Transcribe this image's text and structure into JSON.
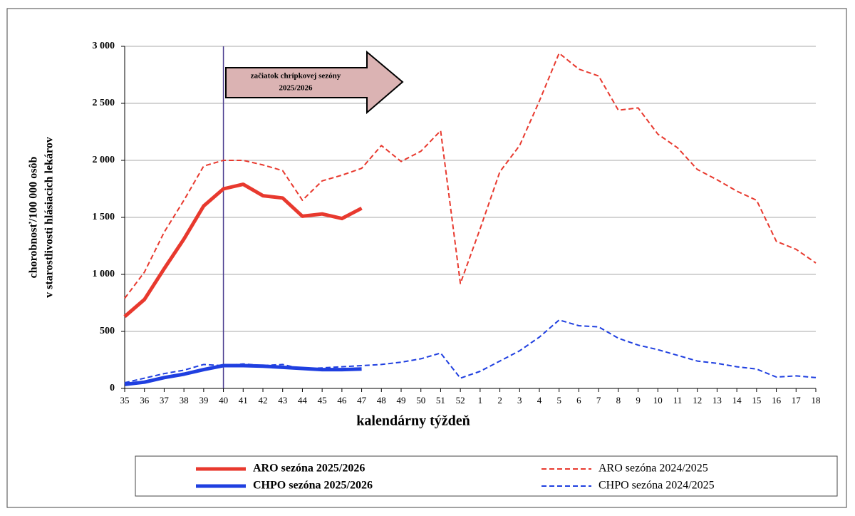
{
  "chart_data": {
    "type": "line",
    "ylabel": [
      "chorobnosť/100 000 osôb",
      "v starostlivosti hlásiacich lekárov"
    ],
    "xlabel": "kalendárny týždeň",
    "annotation": [
      "začiatok chrípkovej sezóny",
      "2025/2026"
    ],
    "vline": "40",
    "categories": [
      "35",
      "36",
      "37",
      "38",
      "39",
      "40",
      "41",
      "42",
      "43",
      "44",
      "45",
      "46",
      "47",
      "48",
      "49",
      "50",
      "51",
      "52",
      "1",
      "2",
      "3",
      "4",
      "5",
      "6",
      "7",
      "8",
      "9",
      "10",
      "11",
      "12",
      "13",
      "14",
      "15",
      "16",
      "17",
      "18"
    ],
    "series": [
      {
        "name": "ARO sezóna 2025/2026",
        "color": "#e8392e",
        "dash": false,
        "values": [
          630,
          780,
          1050,
          1310,
          1600,
          1750,
          1790,
          1690,
          1670,
          1510,
          1530,
          1490,
          1580,
          null,
          null,
          null,
          null,
          null,
          null,
          null,
          null,
          null,
          null,
          null,
          null,
          null,
          null,
          null,
          null,
          null,
          null,
          null,
          null,
          null,
          null,
          null
        ]
      },
      {
        "name": "ARO sezóna 2024/2025",
        "color": "#e8392e",
        "dash": true,
        "values": [
          790,
          1020,
          1370,
          1650,
          1950,
          2000,
          2000,
          1960,
          1910,
          1650,
          1820,
          1870,
          1930,
          2130,
          1990,
          2080,
          2260,
          920,
          1400,
          1900,
          2130,
          2520,
          2940,
          2800,
          2740,
          2440,
          2460,
          2230,
          2110,
          1920,
          1830,
          1730,
          1650,
          1290,
          1220,
          1100
        ]
      },
      {
        "name": "CHPO sezóna 2025/2026",
        "color": "#1f3fe0",
        "dash": false,
        "values": [
          35,
          55,
          95,
          125,
          165,
          200,
          200,
          195,
          185,
          175,
          165,
          165,
          170,
          null,
          null,
          null,
          null,
          null,
          null,
          null,
          null,
          null,
          null,
          null,
          null,
          null,
          null,
          null,
          null,
          null,
          null,
          null,
          null,
          null,
          null,
          null
        ]
      },
      {
        "name": "CHPO sezóna 2024/2025",
        "color": "#1f3fe0",
        "dash": true,
        "values": [
          50,
          90,
          130,
          160,
          210,
          200,
          215,
          200,
          210,
          170,
          180,
          190,
          200,
          210,
          230,
          260,
          310,
          90,
          150,
          240,
          330,
          450,
          600,
          550,
          540,
          440,
          380,
          340,
          290,
          240,
          220,
          190,
          170,
          100,
          110,
          95
        ]
      }
    ],
    "ylim": [
      0,
      3000
    ],
    "yticks": [
      0,
      500,
      {
        "value": 1000,
        "label": "1 000"
      },
      {
        "value": 1500,
        "label": "1 500"
      },
      {
        "value": 2000,
        "label": "2 000"
      },
      {
        "value": 2500,
        "label": "2 500"
      },
      {
        "value": 3000,
        "label": "3 000"
      }
    ],
    "grid": true
  }
}
